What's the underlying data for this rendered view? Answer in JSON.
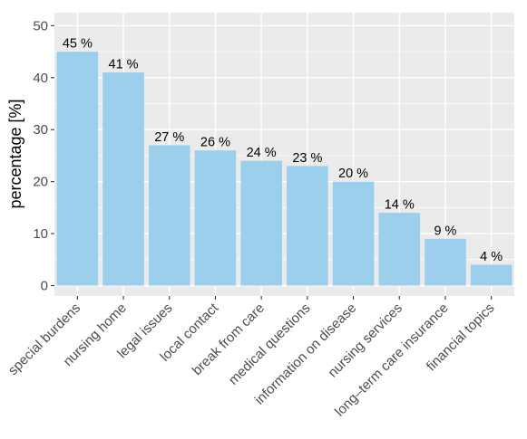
{
  "chart_data": {
    "type": "bar",
    "categories": [
      "special burdens",
      "nursing home",
      "legal issues",
      "local contact",
      "break from care",
      "medical questions",
      "information on disease",
      "nursing services",
      "long–term care insurance",
      "financial topics"
    ],
    "values": [
      45,
      41,
      27,
      26,
      24,
      23,
      20,
      14,
      9,
      4
    ],
    "data_labels": [
      "45 %",
      "41 %",
      "27 %",
      "26 %",
      "24 %",
      "23 %",
      "20 %",
      "14 %",
      "9 %",
      "4 %"
    ],
    "title": "",
    "xlabel": "",
    "ylabel": "percentage [%]",
    "ylim": [
      0,
      52.5
    ],
    "yticks": [
      0,
      10,
      20,
      30,
      40,
      50
    ],
    "grid": true,
    "legend": "none",
    "colors": {
      "bar": "#9ccfeb",
      "panel": "#ebebeb",
      "grid": "#ffffff"
    }
  }
}
